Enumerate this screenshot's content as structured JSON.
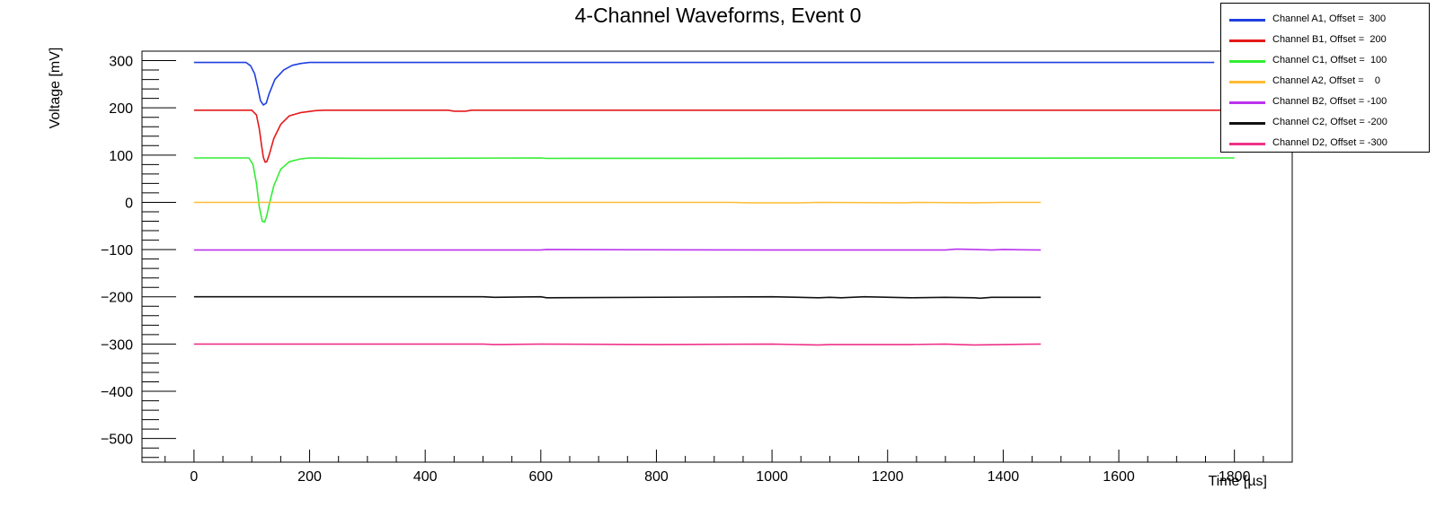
{
  "chart_data": {
    "type": "line",
    "title": "4-Channel Waveforms, Event 0",
    "xlabel": "Time [µs]",
    "ylabel": "Voltage [mV]",
    "xlim": [
      -90,
      1900
    ],
    "ylim": [
      -550,
      320
    ],
    "x_ticks": [
      0,
      200,
      400,
      600,
      800,
      1000,
      1200,
      1400,
      1600,
      1800
    ],
    "y_ticks": [
      300,
      200,
      100,
      0,
      -100,
      -200,
      -300,
      -400,
      -500
    ],
    "x_tick_labels": [
      "0",
      "200",
      "400",
      "600",
      "800",
      "1000",
      "1200",
      "1400",
      "1600",
      "1800"
    ],
    "y_tick_labels": [
      "300",
      "200",
      "100",
      "0",
      "−100",
      "−200",
      "−300",
      "−400",
      "−500"
    ],
    "grid": false,
    "legend_position": "top-right",
    "series": [
      {
        "name": "Channel A1, Offset =  300",
        "color": "#1f3fe0",
        "x": [
          0,
          90,
          98,
          105,
          110,
          115,
          120,
          125,
          130,
          140,
          155,
          170,
          185,
          200,
          215,
          1765
        ],
        "y": [
          296,
          296,
          289,
          272,
          245,
          215,
          206,
          210,
          230,
          260,
          280,
          290,
          294,
          296,
          296,
          296
        ]
      },
      {
        "name": "Channel B1, Offset =  200",
        "color": "#e41a1c",
        "x": [
          0,
          100,
          108,
          113,
          117,
          120,
          123,
          126,
          130,
          138,
          150,
          165,
          185,
          210,
          225,
          440,
          450,
          470,
          480,
          1800
        ],
        "y": [
          195,
          195,
          185,
          155,
          120,
          95,
          85,
          86,
          100,
          135,
          165,
          183,
          190,
          194,
          195,
          195,
          193,
          193,
          195,
          195
        ]
      },
      {
        "name": "Channel C1, Offset =  100",
        "color": "#33ee33",
        "x": [
          0,
          95,
          102,
          108,
          113,
          118,
          122,
          126,
          130,
          138,
          150,
          165,
          185,
          200,
          300,
          600,
          610,
          1800
        ],
        "y": [
          94,
          94,
          80,
          40,
          -10,
          -40,
          -42,
          -28,
          -5,
          35,
          70,
          86,
          92,
          94,
          93,
          94,
          93,
          94
        ]
      },
      {
        "name": "Channel A2, Offset =    0",
        "color": "#ffbb33",
        "x": [
          0,
          930,
          960,
          1050,
          1080,
          1230,
          1250,
          1350,
          1400,
          1465
        ],
        "y": [
          0,
          0,
          -1,
          -1,
          0,
          -1,
          0,
          -1,
          0,
          0
        ]
      },
      {
        "name": "Channel B2, Offset = -100",
        "color": "#bb33ee",
        "x": [
          0,
          600,
          610,
          1000,
          1200,
          1300,
          1320,
          1380,
          1400,
          1465
        ],
        "y": [
          -101,
          -101,
          -100,
          -101,
          -101,
          -101,
          -99,
          -101,
          -100,
          -101
        ]
      },
      {
        "name": "Channel C2, Offset = -200",
        "color": "#111111",
        "x": [
          0,
          500,
          520,
          600,
          610,
          1000,
          1080,
          1100,
          1120,
          1160,
          1240,
          1300,
          1350,
          1360,
          1380,
          1465
        ],
        "y": [
          -200,
          -200,
          -201,
          -200,
          -202,
          -200,
          -202,
          -201,
          -202,
          -200,
          -202,
          -201,
          -202,
          -203,
          -201,
          -201
        ]
      },
      {
        "name": "Channel D2, Offset = -300",
        "color": "#ee3388",
        "x": [
          0,
          500,
          520,
          600,
          800,
          1000,
          1080,
          1100,
          1240,
          1300,
          1350,
          1400,
          1465
        ],
        "y": [
          -300,
          -300,
          -301,
          -300,
          -301,
          -300,
          -302,
          -301,
          -301,
          -300,
          -302,
          -301,
          -300
        ]
      }
    ]
  }
}
